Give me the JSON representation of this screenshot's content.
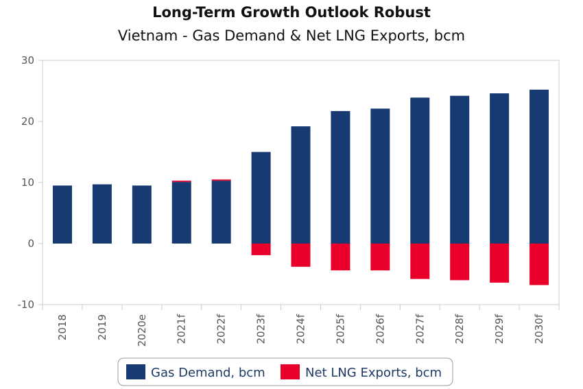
{
  "chart_data": {
    "type": "bar",
    "title": "Long-Term Growth Outlook Robust",
    "subtitle": "Vietnam - Gas Demand & Net LNG Exports, bcm",
    "xlabel": "",
    "ylabel": "",
    "ylim": [
      -10,
      30
    ],
    "yticks": [
      -10,
      0,
      10,
      20,
      30
    ],
    "grid": false,
    "legend": "bottom",
    "categories": [
      "2018",
      "2019",
      "2020e",
      "2021f",
      "2022f",
      "2023f",
      "2024f",
      "2025f",
      "2026f",
      "2027f",
      "2028f",
      "2029f",
      "2030f"
    ],
    "series": [
      {
        "name": "Gas Demand, bcm",
        "color": "#173a73",
        "values": [
          9.5,
          9.7,
          9.5,
          10.1,
          10.3,
          15.0,
          19.2,
          21.7,
          22.1,
          23.9,
          24.2,
          24.6,
          25.2
        ]
      },
      {
        "name": "Net LNG Exports, bcm",
        "color": "#e8002a",
        "values": [
          0,
          0,
          0,
          0.2,
          0.2,
          -1.9,
          -3.8,
          -4.4,
          -4.4,
          -5.8,
          -6.0,
          -6.4,
          -6.8
        ]
      }
    ]
  }
}
